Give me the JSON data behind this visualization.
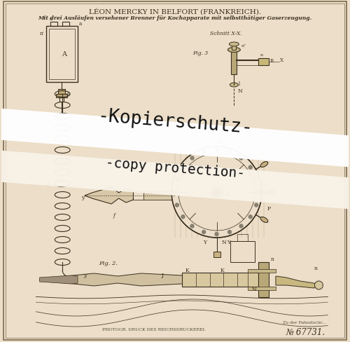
{
  "paper_color": "#ecdec8",
  "line_color": "#3a3020",
  "title_line1": "LÉON MERCKY IN BELFORT (FRANKREICH).",
  "title_line2": "Mit drei Ausläufen versehener Brenner für Kochapparate mit selbstthätiger Gaserzeugung.",
  "watermark_line1": "-Kopierschutz-",
  "watermark_line2": "-copy protection-",
  "patent_no": "№ 67731.",
  "bottom_text": "PHOTOGR. DRUCK DES REICHSDRUCKEREI.",
  "bottom_right": "Zu der Patentschr...",
  "fig2_label": "Fig. 2.",
  "fig3_label": "Fig. 3",
  "schnitt_label": "Schnitt X-X.",
  "band1_color": "#ffffff",
  "band2_color": "#f5f0e8",
  "wm_color": "#111111"
}
